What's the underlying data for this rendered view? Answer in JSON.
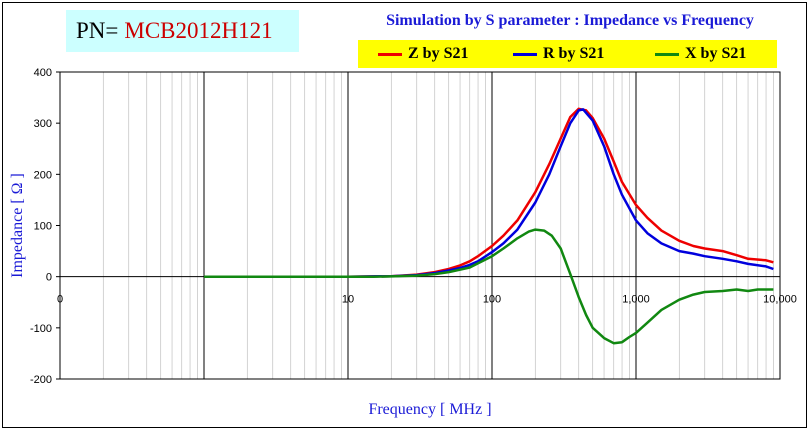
{
  "header": {
    "pn_label": "PN=",
    "pn_value": "MCB2012H121",
    "title": "Simulation by S parameter : Impedance vs Frequency"
  },
  "colors": {
    "z": "#ee0000",
    "r": "#0000dd",
    "x": "#118811",
    "axis_title": "#1a1ad6",
    "legend_bg": "#ffff00",
    "pn_bg": "#ccffff"
  },
  "chart_data": {
    "type": "line",
    "title": "Simulation by S parameter : Impedance vs Frequency",
    "xlabel": "Frequency [ MHz ]",
    "ylabel": "Impedance [ Ω ]",
    "xscale": "log",
    "xlim": [
      0.1,
      10000
    ],
    "ylim": [
      -200,
      400
    ],
    "x_tick_labels": [
      "0",
      "10",
      "100",
      "1,000",
      "10,000"
    ],
    "y_ticks": [
      -200,
      -100,
      0,
      100,
      200,
      300,
      400
    ],
    "grid": true,
    "legend_position": "top-right",
    "series": [
      {
        "name": "Z by S21",
        "color": "#ee0000",
        "points": [
          [
            1,
            0
          ],
          [
            5,
            0
          ],
          [
            10,
            0
          ],
          [
            15,
            0.5
          ],
          [
            20,
            1
          ],
          [
            30,
            4
          ],
          [
            40,
            9
          ],
          [
            50,
            15
          ],
          [
            60,
            22
          ],
          [
            70,
            30
          ],
          [
            80,
            40
          ],
          [
            100,
            60
          ],
          [
            120,
            80
          ],
          [
            150,
            110
          ],
          [
            200,
            165
          ],
          [
            250,
            220
          ],
          [
            300,
            270
          ],
          [
            350,
            312
          ],
          [
            400,
            328
          ],
          [
            450,
            325
          ],
          [
            500,
            310
          ],
          [
            600,
            270
          ],
          [
            700,
            225
          ],
          [
            800,
            185
          ],
          [
            1000,
            140
          ],
          [
            1200,
            115
          ],
          [
            1500,
            90
          ],
          [
            2000,
            70
          ],
          [
            2500,
            60
          ],
          [
            3000,
            55
          ],
          [
            4000,
            50
          ],
          [
            5000,
            42
          ],
          [
            6000,
            35
          ],
          [
            8000,
            32
          ],
          [
            9000,
            28
          ]
        ]
      },
      {
        "name": "R by S21",
        "color": "#0000dd",
        "points": [
          [
            1,
            0
          ],
          [
            5,
            0
          ],
          [
            10,
            0
          ],
          [
            15,
            0.5
          ],
          [
            20,
            1
          ],
          [
            30,
            3
          ],
          [
            40,
            7
          ],
          [
            50,
            12
          ],
          [
            60,
            17
          ],
          [
            70,
            23
          ],
          [
            80,
            30
          ],
          [
            100,
            48
          ],
          [
            120,
            65
          ],
          [
            150,
            92
          ],
          [
            200,
            145
          ],
          [
            250,
            200
          ],
          [
            300,
            255
          ],
          [
            350,
            300
          ],
          [
            400,
            325
          ],
          [
            430,
            327
          ],
          [
            500,
            305
          ],
          [
            600,
            255
          ],
          [
            700,
            200
          ],
          [
            800,
            160
          ],
          [
            1000,
            110
          ],
          [
            1200,
            85
          ],
          [
            1500,
            65
          ],
          [
            2000,
            50
          ],
          [
            2500,
            45
          ],
          [
            3000,
            40
          ],
          [
            4000,
            35
          ],
          [
            5000,
            30
          ],
          [
            6000,
            25
          ],
          [
            8000,
            20
          ],
          [
            9000,
            15
          ]
        ]
      },
      {
        "name": "X by S21",
        "color": "#118811",
        "points": [
          [
            1,
            0
          ],
          [
            5,
            0
          ],
          [
            10,
            0
          ],
          [
            15,
            0
          ],
          [
            20,
            0.5
          ],
          [
            30,
            2
          ],
          [
            40,
            5
          ],
          [
            50,
            9
          ],
          [
            70,
            18
          ],
          [
            100,
            40
          ],
          [
            120,
            55
          ],
          [
            150,
            75
          ],
          [
            180,
            88
          ],
          [
            200,
            92
          ],
          [
            230,
            90
          ],
          [
            260,
            80
          ],
          [
            300,
            55
          ],
          [
            350,
            5
          ],
          [
            400,
            -40
          ],
          [
            450,
            -75
          ],
          [
            500,
            -100
          ],
          [
            600,
            -120
          ],
          [
            700,
            -130
          ],
          [
            800,
            -128
          ],
          [
            900,
            -118
          ],
          [
            1000,
            -110
          ],
          [
            1200,
            -90
          ],
          [
            1500,
            -65
          ],
          [
            2000,
            -45
          ],
          [
            2500,
            -35
          ],
          [
            3000,
            -30
          ],
          [
            4000,
            -28
          ],
          [
            5000,
            -25
          ],
          [
            6000,
            -28
          ],
          [
            7000,
            -25
          ],
          [
            9000,
            -25
          ]
        ]
      }
    ]
  }
}
